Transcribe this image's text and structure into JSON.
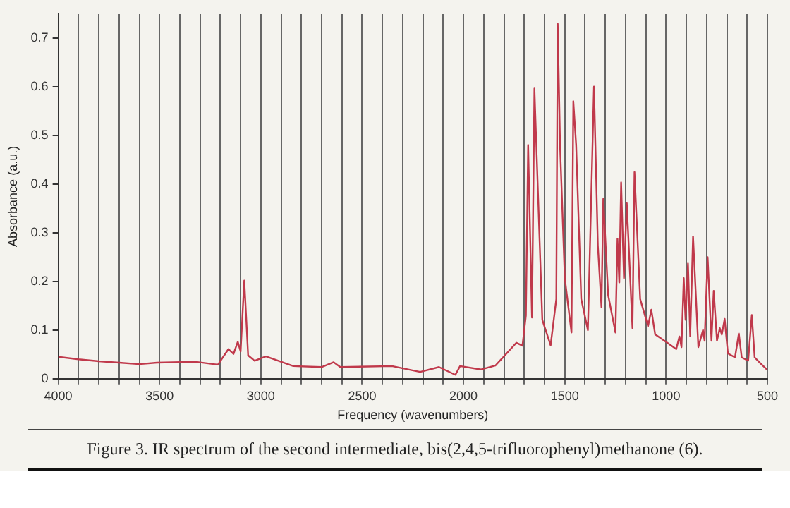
{
  "chart_data": {
    "type": "line",
    "xlabel": "Frequency (wavenumbers)",
    "ylabel": "Absorbance (a.u.)",
    "annotations": [
      "Figure 3.  IR spectrum of the second intermediate, bis(2,4,5-trifluorophenyl)methanone (6)."
    ],
    "x": [
      4000,
      3900,
      3800,
      3700,
      3600,
      3513,
      3327,
      3212,
      3160,
      3135,
      3114,
      3100,
      3082,
      3063,
      3031,
      2975,
      2840,
      2701,
      2641,
      2608,
      2353,
      2214,
      2121,
      2040,
      2017,
      1913,
      1843,
      1796,
      1739,
      1709,
      1692,
      1681,
      1662,
      1650,
      1611,
      1570,
      1542,
      1535,
      1523,
      1500,
      1467,
      1458,
      1444,
      1419,
      1386,
      1356,
      1337,
      1319,
      1310,
      1286,
      1250,
      1240,
      1231,
      1222,
      1208,
      1194,
      1166,
      1156,
      1128,
      1089,
      1073,
      1054,
      1008,
      950,
      934,
      924,
      913,
      904,
      892,
      881,
      867,
      841,
      818,
      810,
      795,
      776,
      765,
      749,
      735,
      725,
      711,
      695,
      660,
      641,
      627,
      595,
      577,
      563,
      533,
      500
    ],
    "values": [
      0.045,
      0.04,
      0.036,
      0.033,
      0.03,
      0.033,
      0.035,
      0.029,
      0.061,
      0.051,
      0.076,
      0.056,
      0.202,
      0.048,
      0.037,
      0.046,
      0.026,
      0.024,
      0.034,
      0.024,
      0.026,
      0.014,
      0.024,
      0.008,
      0.026,
      0.019,
      0.027,
      0.048,
      0.074,
      0.068,
      0.13,
      0.481,
      0.126,
      0.597,
      0.121,
      0.069,
      0.164,
      0.73,
      0.475,
      0.207,
      0.095,
      0.571,
      0.481,
      0.164,
      0.1,
      0.601,
      0.275,
      0.147,
      0.37,
      0.172,
      0.095,
      0.288,
      0.198,
      0.404,
      0.207,
      0.361,
      0.104,
      0.425,
      0.164,
      0.108,
      0.142,
      0.091,
      0.078,
      0.061,
      0.087,
      0.065,
      0.207,
      0.121,
      0.237,
      0.087,
      0.293,
      0.065,
      0.1,
      0.078,
      0.25,
      0.078,
      0.181,
      0.078,
      0.104,
      0.091,
      0.123,
      0.052,
      0.044,
      0.093,
      0.044,
      0.037,
      0.131,
      0.044,
      0.031,
      0.018
    ],
    "color": "#c0394b",
    "marker": "none",
    "grid": "x",
    "xlim": [
      4000,
      500
    ],
    "xticks": [
      4000,
      {
        "value": 3900,
        "label": null
      },
      {
        "value": 3800,
        "label": null
      },
      {
        "value": 3700,
        "label": null
      },
      {
        "value": 3600,
        "label": null
      },
      3500,
      {
        "value": 3400,
        "label": null
      },
      {
        "value": 3300,
        "label": null
      },
      {
        "value": 3200,
        "label": null
      },
      {
        "value": 3100,
        "label": null
      },
      3000,
      {
        "value": 2900,
        "label": null
      },
      {
        "value": 2800,
        "label": null
      },
      {
        "value": 2700,
        "label": null
      },
      {
        "value": 2600,
        "label": null
      },
      2500,
      {
        "value": 2400,
        "label": null
      },
      {
        "value": 2300,
        "label": null
      },
      {
        "value": 2200,
        "label": null
      },
      {
        "value": 2100,
        "label": null
      },
      2000,
      {
        "value": 1900,
        "label": null
      },
      {
        "value": 1800,
        "label": null
      },
      {
        "value": 1700,
        "label": null
      },
      {
        "value": 1600,
        "label": null
      },
      1500,
      {
        "value": 1400,
        "label": null
      },
      {
        "value": 1300,
        "label": null
      },
      {
        "value": 1200,
        "label": null
      },
      {
        "value": 1100,
        "label": null
      },
      1000,
      {
        "value": 900,
        "label": null
      },
      {
        "value": 800,
        "label": null
      },
      {
        "value": 700,
        "label": null
      },
      {
        "value": 600,
        "label": null
      },
      500
    ],
    "ylim": [
      0,
      0.75
    ],
    "yticks": [
      0,
      0.1,
      0.2,
      0.3,
      0.4,
      0.5,
      0.6,
      0.7
    ]
  }
}
